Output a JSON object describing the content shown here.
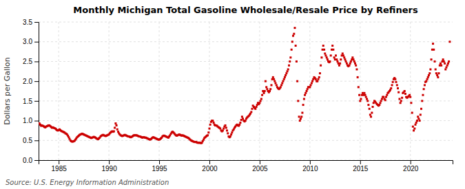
{
  "chart_data": {
    "type": "scatter",
    "title": "Monthly Michigan Total Gasoline Wholesale/Resale Price by Refiners",
    "ylabel": "Dollars per Gallon",
    "annotations": [
      "Source: U.S. Energy Information Administration"
    ],
    "color": "#cc0000",
    "marker": "square",
    "grid": true,
    "xlim": [
      1983.0,
      2024.2
    ],
    "ylim": [
      0.0,
      3.5
    ],
    "xticks": [
      1985,
      1990,
      1995,
      2000,
      2005,
      2010,
      2015,
      2020
    ],
    "yticks": [
      {
        "value": 0.0,
        "label": "0.0"
      },
      0.5,
      {
        "value": 1.0,
        "label": "1.0"
      },
      1.5,
      {
        "value": 2.0,
        "label": "2.0"
      },
      2.5,
      {
        "value": 3.0,
        "label": "3.0"
      },
      3.5
    ],
    "x": [
      1983.08,
      1983.17,
      1983.25,
      1983.33,
      1983.42,
      1983.5,
      1983.58,
      1983.67,
      1983.75,
      1983.83,
      1983.92,
      1984.0,
      1984.08,
      1984.17,
      1984.25,
      1984.33,
      1984.42,
      1984.5,
      1984.58,
      1984.67,
      1984.75,
      1984.83,
      1984.92,
      1985.0,
      1985.08,
      1985.17,
      1985.25,
      1985.33,
      1985.42,
      1985.5,
      1985.58,
      1985.67,
      1985.75,
      1985.83,
      1985.92,
      1986.0,
      1986.08,
      1986.17,
      1986.25,
      1986.33,
      1986.42,
      1986.5,
      1986.58,
      1986.67,
      1986.75,
      1986.83,
      1986.92,
      1987.0,
      1987.08,
      1987.17,
      1987.25,
      1987.33,
      1987.42,
      1987.5,
      1987.58,
      1987.67,
      1987.75,
      1987.83,
      1987.92,
      1988.0,
      1988.08,
      1988.17,
      1988.25,
      1988.33,
      1988.42,
      1988.5,
      1988.58,
      1988.67,
      1988.75,
      1988.83,
      1988.92,
      1989.0,
      1989.08,
      1989.17,
      1989.25,
      1989.33,
      1989.42,
      1989.5,
      1989.58,
      1989.67,
      1989.75,
      1989.83,
      1989.92,
      1990.0,
      1990.08,
      1990.17,
      1990.25,
      1990.33,
      1990.42,
      1990.5,
      1990.58,
      1990.67,
      1990.75,
      1990.83,
      1990.92,
      1991.0,
      1991.08,
      1991.17,
      1991.25,
      1991.33,
      1991.42,
      1991.5,
      1991.58,
      1991.67,
      1991.75,
      1991.83,
      1991.92,
      1992.0,
      1992.08,
      1992.17,
      1992.25,
      1992.33,
      1992.42,
      1992.5,
      1992.58,
      1992.67,
      1992.75,
      1992.83,
      1992.92,
      1993.0,
      1993.08,
      1993.17,
      1993.25,
      1993.33,
      1993.42,
      1993.5,
      1993.58,
      1993.67,
      1993.75,
      1993.83,
      1993.92,
      1994.0,
      1994.08,
      1994.17,
      1994.25,
      1994.33,
      1994.42,
      1994.5,
      1994.58,
      1994.67,
      1994.75,
      1994.83,
      1994.92,
      1995.0,
      1995.08,
      1995.17,
      1995.25,
      1995.33,
      1995.42,
      1995.5,
      1995.58,
      1995.67,
      1995.75,
      1995.83,
      1995.92,
      1996.0,
      1996.08,
      1996.17,
      1996.25,
      1996.33,
      1996.42,
      1996.5,
      1996.58,
      1996.67,
      1996.75,
      1996.83,
      1996.92,
      1997.0,
      1997.08,
      1997.17,
      1997.25,
      1997.33,
      1997.42,
      1997.5,
      1997.58,
      1997.67,
      1997.75,
      1997.83,
      1997.92,
      1998.0,
      1998.08,
      1998.17,
      1998.25,
      1998.33,
      1998.42,
      1998.5,
      1998.58,
      1998.67,
      1998.75,
      1998.83,
      1998.92,
      1999.0,
      1999.08,
      1999.17,
      1999.25,
      1999.33,
      1999.42,
      1999.5,
      1999.58,
      1999.67,
      1999.75,
      1999.83,
      1999.92,
      2000.0,
      2000.08,
      2000.17,
      2000.25,
      2000.33,
      2000.42,
      2000.5,
      2000.58,
      2000.67,
      2000.75,
      2000.83,
      2000.92,
      2001.0,
      2001.08,
      2001.17,
      2001.25,
      2001.33,
      2001.42,
      2001.5,
      2001.58,
      2001.67,
      2001.75,
      2001.83,
      2001.92,
      2002.0,
      2002.08,
      2002.17,
      2002.25,
      2002.33,
      2002.42,
      2002.5,
      2002.58,
      2002.67,
      2002.75,
      2002.83,
      2002.92,
      2003.0,
      2003.08,
      2003.17,
      2003.25,
      2003.33,
      2003.42,
      2003.5,
      2003.58,
      2003.67,
      2003.75,
      2003.83,
      2003.92,
      2004.0,
      2004.08,
      2004.17,
      2004.25,
      2004.33,
      2004.42,
      2004.5,
      2004.58,
      2004.67,
      2004.75,
      2004.83,
      2004.92,
      2005.0,
      2005.08,
      2005.17,
      2005.25,
      2005.33,
      2005.42,
      2005.5,
      2005.58,
      2005.67,
      2005.75,
      2005.83,
      2005.92,
      2006.0,
      2006.08,
      2006.17,
      2006.25,
      2006.33,
      2006.42,
      2006.5,
      2006.58,
      2006.67,
      2006.75,
      2006.83,
      2006.92,
      2007.0,
      2007.08,
      2007.17,
      2007.25,
      2007.33,
      2007.42,
      2007.5,
      2007.58,
      2007.67,
      2007.75,
      2007.83,
      2007.92,
      2008.0,
      2008.08,
      2008.17,
      2008.25,
      2008.33,
      2008.42,
      2008.5,
      2008.58,
      2008.67,
      2008.75,
      2008.83,
      2008.92,
      2009.0,
      2009.08,
      2009.17,
      2009.25,
      2009.33,
      2009.42,
      2009.5,
      2009.58,
      2009.67,
      2009.75,
      2009.83,
      2009.92,
      2010.0,
      2010.08,
      2010.17,
      2010.25,
      2010.33,
      2010.42,
      2010.5,
      2010.58,
      2010.67,
      2010.75,
      2010.83,
      2010.92,
      2011.0,
      2011.08,
      2011.17,
      2011.25,
      2011.33,
      2011.42,
      2011.5,
      2011.58,
      2011.67,
      2011.75,
      2011.83,
      2011.92,
      2012.0,
      2012.08,
      2012.17,
      2012.25,
      2012.33,
      2012.42,
      2012.5,
      2012.58,
      2012.67,
      2012.75,
      2012.83,
      2012.92,
      2013.0,
      2013.08,
      2013.17,
      2013.25,
      2013.33,
      2013.42,
      2013.5,
      2013.58,
      2013.67,
      2013.75,
      2013.83,
      2013.92,
      2014.0,
      2014.08,
      2014.17,
      2014.25,
      2014.33,
      2014.42,
      2014.5,
      2014.58,
      2014.67,
      2014.75,
      2014.83,
      2014.92,
      2015.0,
      2015.08,
      2015.17,
      2015.25,
      2015.33,
      2015.42,
      2015.5,
      2015.58,
      2015.67,
      2015.75,
      2015.83,
      2015.92,
      2016.0,
      2016.08,
      2016.17,
      2016.25,
      2016.33,
      2016.42,
      2016.5,
      2016.58,
      2016.67,
      2016.75,
      2016.83,
      2016.92,
      2017.0,
      2017.08,
      2017.17,
      2017.25,
      2017.33,
      2017.42,
      2017.5,
      2017.58,
      2017.67,
      2017.75,
      2017.83,
      2017.92,
      2018.0,
      2018.08,
      2018.17,
      2018.25,
      2018.33,
      2018.42,
      2018.5,
      2018.58,
      2018.67,
      2018.75,
      2018.83,
      2018.92,
      2019.0,
      2019.08,
      2019.17,
      2019.25,
      2019.33,
      2019.42,
      2019.5,
      2019.58,
      2019.67,
      2019.75,
      2019.83,
      2019.92,
      2020.0,
      2020.08,
      2020.17,
      2020.25,
      2020.33,
      2020.42,
      2020.5,
      2020.58,
      2020.67,
      2020.75,
      2020.83,
      2020.92,
      2021.0,
      2021.08,
      2021.17,
      2021.25,
      2021.33,
      2021.42,
      2021.5,
      2021.58,
      2021.67,
      2021.75,
      2021.83,
      2021.92,
      2022.0,
      2022.08,
      2022.17,
      2022.25,
      2022.33,
      2022.42,
      2022.5,
      2022.58,
      2022.67,
      2022.75,
      2022.83,
      2022.92,
      2023.0,
      2023.08,
      2023.17,
      2023.25,
      2023.33,
      2023.42,
      2023.5,
      2023.58,
      2023.67,
      2023.75,
      2023.83,
      2023.92
    ],
    "values": [
      0.93,
      0.9,
      0.87,
      0.88,
      0.87,
      0.86,
      0.84,
      0.83,
      0.85,
      0.86,
      0.87,
      0.88,
      0.88,
      0.86,
      0.84,
      0.82,
      0.83,
      0.82,
      0.81,
      0.8,
      0.78,
      0.76,
      0.75,
      0.76,
      0.78,
      0.76,
      0.74,
      0.73,
      0.72,
      0.71,
      0.7,
      0.68,
      0.67,
      0.65,
      0.62,
      0.58,
      0.54,
      0.5,
      0.48,
      0.47,
      0.47,
      0.48,
      0.49,
      0.52,
      0.55,
      0.58,
      0.6,
      0.62,
      0.64,
      0.65,
      0.66,
      0.67,
      0.66,
      0.65,
      0.64,
      0.63,
      0.62,
      0.61,
      0.6,
      0.59,
      0.58,
      0.57,
      0.56,
      0.57,
      0.58,
      0.59,
      0.58,
      0.57,
      0.55,
      0.54,
      0.53,
      0.55,
      0.57,
      0.6,
      0.62,
      0.63,
      0.64,
      0.63,
      0.62,
      0.61,
      0.62,
      0.63,
      0.64,
      0.65,
      0.68,
      0.7,
      0.72,
      0.73,
      0.72,
      0.73,
      0.82,
      0.93,
      0.88,
      0.78,
      0.72,
      0.68,
      0.65,
      0.63,
      0.62,
      0.61,
      0.62,
      0.63,
      0.64,
      0.63,
      0.62,
      0.61,
      0.6,
      0.6,
      0.59,
      0.58,
      0.59,
      0.6,
      0.62,
      0.63,
      0.63,
      0.63,
      0.63,
      0.62,
      0.61,
      0.6,
      0.6,
      0.59,
      0.58,
      0.57,
      0.58,
      0.58,
      0.57,
      0.57,
      0.56,
      0.55,
      0.54,
      0.53,
      0.52,
      0.53,
      0.55,
      0.57,
      0.58,
      0.57,
      0.56,
      0.55,
      0.54,
      0.53,
      0.52,
      0.52,
      0.53,
      0.55,
      0.57,
      0.6,
      0.62,
      0.62,
      0.61,
      0.6,
      0.59,
      0.58,
      0.57,
      0.6,
      0.63,
      0.67,
      0.7,
      0.72,
      0.7,
      0.68,
      0.65,
      0.63,
      0.62,
      0.63,
      0.64,
      0.65,
      0.64,
      0.63,
      0.62,
      0.63,
      0.62,
      0.61,
      0.6,
      0.59,
      0.58,
      0.57,
      0.56,
      0.54,
      0.52,
      0.5,
      0.49,
      0.48,
      0.47,
      0.46,
      0.46,
      0.46,
      0.45,
      0.44,
      0.44,
      0.44,
      0.44,
      0.43,
      0.44,
      0.48,
      0.52,
      0.56,
      0.58,
      0.6,
      0.62,
      0.63,
      0.7,
      0.8,
      0.9,
      0.97,
      1.0,
      1.0,
      0.95,
      0.9,
      0.88,
      0.88,
      0.87,
      0.85,
      0.83,
      0.82,
      0.8,
      0.75,
      0.73,
      0.75,
      0.8,
      0.85,
      0.88,
      0.82,
      0.75,
      0.68,
      0.6,
      0.58,
      0.6,
      0.65,
      0.7,
      0.75,
      0.78,
      0.82,
      0.85,
      0.88,
      0.9,
      0.88,
      0.87,
      0.9,
      0.95,
      1.02,
      1.1,
      1.05,
      1.0,
      0.98,
      1.0,
      1.05,
      1.08,
      1.1,
      1.12,
      1.15,
      1.18,
      1.22,
      1.3,
      1.38,
      1.35,
      1.32,
      1.3,
      1.35,
      1.4,
      1.45,
      1.42,
      1.45,
      1.5,
      1.55,
      1.65,
      1.75,
      1.7,
      1.75,
      2.0,
      1.85,
      1.8,
      1.75,
      1.72,
      1.75,
      1.8,
      1.9,
      2.05,
      2.1,
      2.05,
      2.0,
      1.95,
      1.9,
      1.85,
      1.82,
      1.8,
      1.82,
      1.85,
      1.9,
      1.95,
      2.0,
      2.05,
      2.1,
      2.15,
      2.2,
      2.25,
      2.3,
      2.4,
      2.5,
      2.6,
      2.8,
      3.0,
      3.15,
      3.2,
      3.35,
      2.9,
      2.5,
      2.0,
      1.5,
      1.1,
      1.0,
      1.05,
      1.1,
      1.2,
      1.4,
      1.55,
      1.65,
      1.7,
      1.75,
      1.8,
      1.85,
      1.85,
      1.85,
      1.9,
      1.95,
      2.0,
      2.05,
      2.1,
      2.08,
      2.05,
      2.0,
      2.0,
      2.05,
      2.1,
      2.2,
      2.4,
      2.6,
      2.8,
      2.9,
      2.8,
      2.7,
      2.65,
      2.6,
      2.55,
      2.5,
      2.48,
      2.5,
      2.65,
      2.8,
      2.9,
      2.8,
      2.6,
      2.55,
      2.65,
      2.55,
      2.5,
      2.45,
      2.4,
      2.45,
      2.55,
      2.65,
      2.7,
      2.65,
      2.6,
      2.55,
      2.5,
      2.45,
      2.4,
      2.38,
      2.4,
      2.45,
      2.5,
      2.55,
      2.6,
      2.55,
      2.5,
      2.45,
      2.4,
      2.3,
      2.1,
      1.85,
      1.65,
      1.5,
      1.55,
      1.65,
      1.7,
      1.65,
      1.7,
      1.65,
      1.6,
      1.55,
      1.5,
      1.4,
      1.3,
      1.15,
      1.1,
      1.2,
      1.35,
      1.45,
      1.5,
      1.48,
      1.45,
      1.42,
      1.4,
      1.38,
      1.4,
      1.45,
      1.5,
      1.55,
      1.6,
      1.6,
      1.55,
      1.52,
      1.6,
      1.65,
      1.7,
      1.72,
      1.75,
      1.78,
      1.82,
      1.9,
      1.98,
      2.05,
      2.08,
      2.05,
      1.98,
      1.9,
      1.82,
      1.72,
      1.55,
      1.45,
      1.5,
      1.58,
      1.7,
      1.72,
      1.75,
      1.68,
      1.6,
      1.58,
      1.6,
      1.62,
      1.65,
      1.6,
      1.45,
      1.2,
      0.85,
      0.75,
      0.8,
      0.9,
      0.95,
      1.0,
      1.1,
      1.05,
      1.0,
      1.15,
      1.3,
      1.5,
      1.65,
      1.8,
      1.9,
      1.98,
      2.0,
      2.05,
      2.1,
      2.15,
      2.2,
      2.3,
      2.55,
      2.8,
      2.95,
      2.8,
      2.5,
      2.3,
      2.2,
      2.15,
      2.1,
      2.2,
      2.4,
      2.45,
      2.4,
      2.5,
      2.55,
      2.5,
      2.45,
      2.3,
      2.35,
      2.4,
      2.45,
      2.5,
      3.0
    ]
  }
}
